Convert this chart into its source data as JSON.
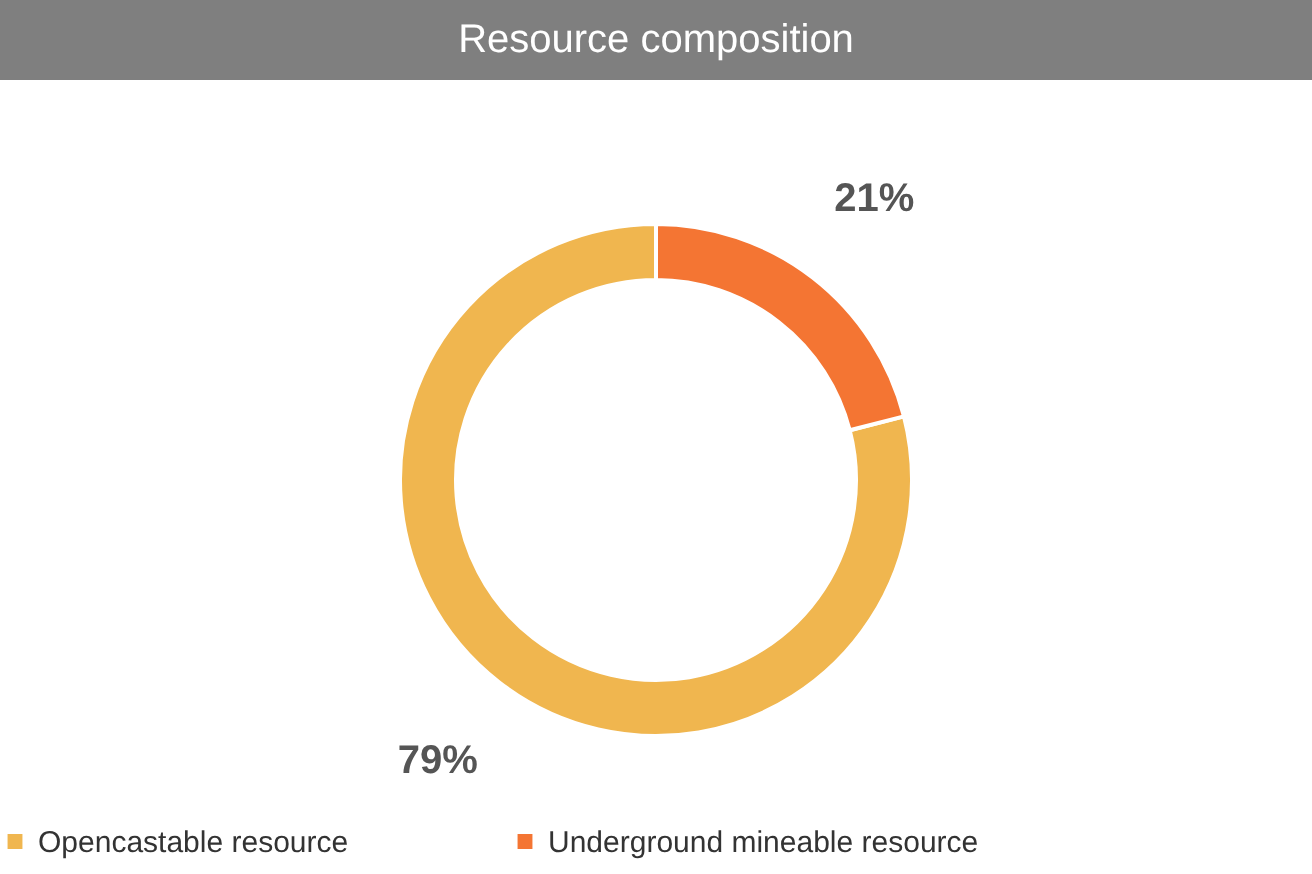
{
  "chart_data": {
    "type": "donut",
    "title": "Resource composition",
    "categories": [
      "Opencastable resource",
      "Underground mineable resource"
    ],
    "values": [
      79,
      21
    ],
    "colors": [
      "#f0b64f",
      "#f47533"
    ],
    "value_labels": [
      "79%",
      "21%"
    ],
    "legend": "bottom"
  }
}
